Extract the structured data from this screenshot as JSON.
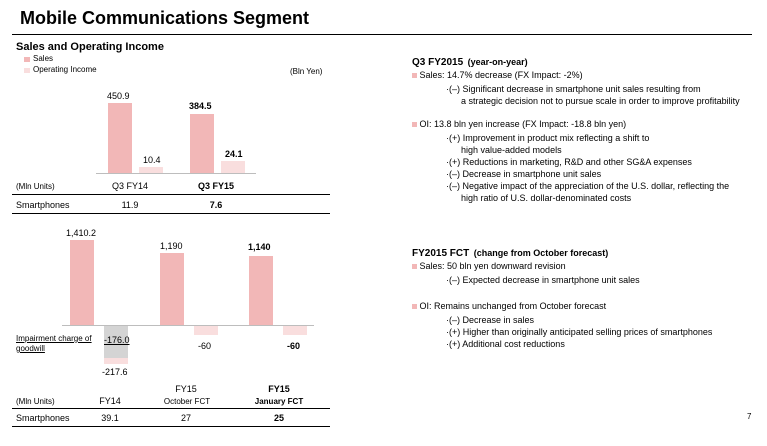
{
  "title": "Mobile Communications Segment",
  "left_top": {
    "heading": "Sales and Operating Income",
    "legend": {
      "sales": "Sales",
      "oi": "Operating Income"
    },
    "unit": "(Bln Yen)",
    "values": {
      "q3fy14_sales": "450.9",
      "q3fy14_oi": "10.4",
      "q3fy15_sales": "384.5",
      "q3fy15_oi": "24.1"
    },
    "row_unit": "(Mln Units)",
    "col_q3fy14": "Q3 FY14",
    "col_q3fy15": "Q3 FY15",
    "row_label": "Smartphones",
    "units_q3fy14": "11.9",
    "units_q3fy15": "7.6"
  },
  "left_bottom": {
    "values": {
      "fy14_sales": "1,410.2",
      "fy14_impair": "-176.0",
      "fy14_oi": "-217.6",
      "oct_sales": "1,190",
      "oct_oi": "-60",
      "jan_sales": "1,140",
      "jan_oi": "-60"
    },
    "impairment_label_1": "Impairment charge of",
    "impairment_label_2": "goodwill",
    "row_unit": "(Mln Units)",
    "col_fy14": "FY14",
    "col_oct_1": "FY15",
    "col_oct_2": "October FCT",
    "col_jan_1": "FY15",
    "col_jan_2": "January FCT",
    "row_label": "Smartphones",
    "units_fy14": "39.1",
    "units_oct": "27",
    "units_jan": "25"
  },
  "right_q3": {
    "heading": "Q3 FY2015",
    "heading_suffix": "(year-on-year)",
    "sales_line": "Sales: 14.7% decrease (FX Impact:  -2%)",
    "sales_sub_1": "(–) Significant decrease in smartphone unit sales resulting from",
    "sales_sub_1b": "a strategic decision not to pursue scale in order to improve profitability",
    "oi_line": "OI: 13.8 bln yen increase (FX Impact:  -18.8 bln yen)",
    "oi_sub_1": "(+) Improvement in product mix reflecting a shift to",
    "oi_sub_1b": "high value-added models",
    "oi_sub_2": "(+) Reductions in marketing, R&D and other SG&A expenses",
    "oi_sub_3": "(–) Decrease in smartphone unit sales",
    "oi_sub_4": "(–) Negative impact of the appreciation of the U.S. dollar, reflecting the",
    "oi_sub_4b": "high ratio of U.S. dollar-denominated costs"
  },
  "right_fct": {
    "heading": "FY2015 FCT",
    "heading_suffix": "(change from October forecast)",
    "sales_line": "Sales: 50 bln yen downward revision",
    "sales_sub_1": "(–) Expected decrease in smartphone unit sales",
    "oi_line": "OI: Remains unchanged from October forecast",
    "oi_sub_1": "(–) Decrease in sales",
    "oi_sub_2": "(+) Higher than originally anticipated selling prices of smartphones",
    "oi_sub_3": "(+) Additional cost reductions"
  },
  "page_number": "7",
  "colors": {
    "sales": "#f2b7b7",
    "oi": "#f9dede",
    "impairment": "#d4d4d4"
  }
}
